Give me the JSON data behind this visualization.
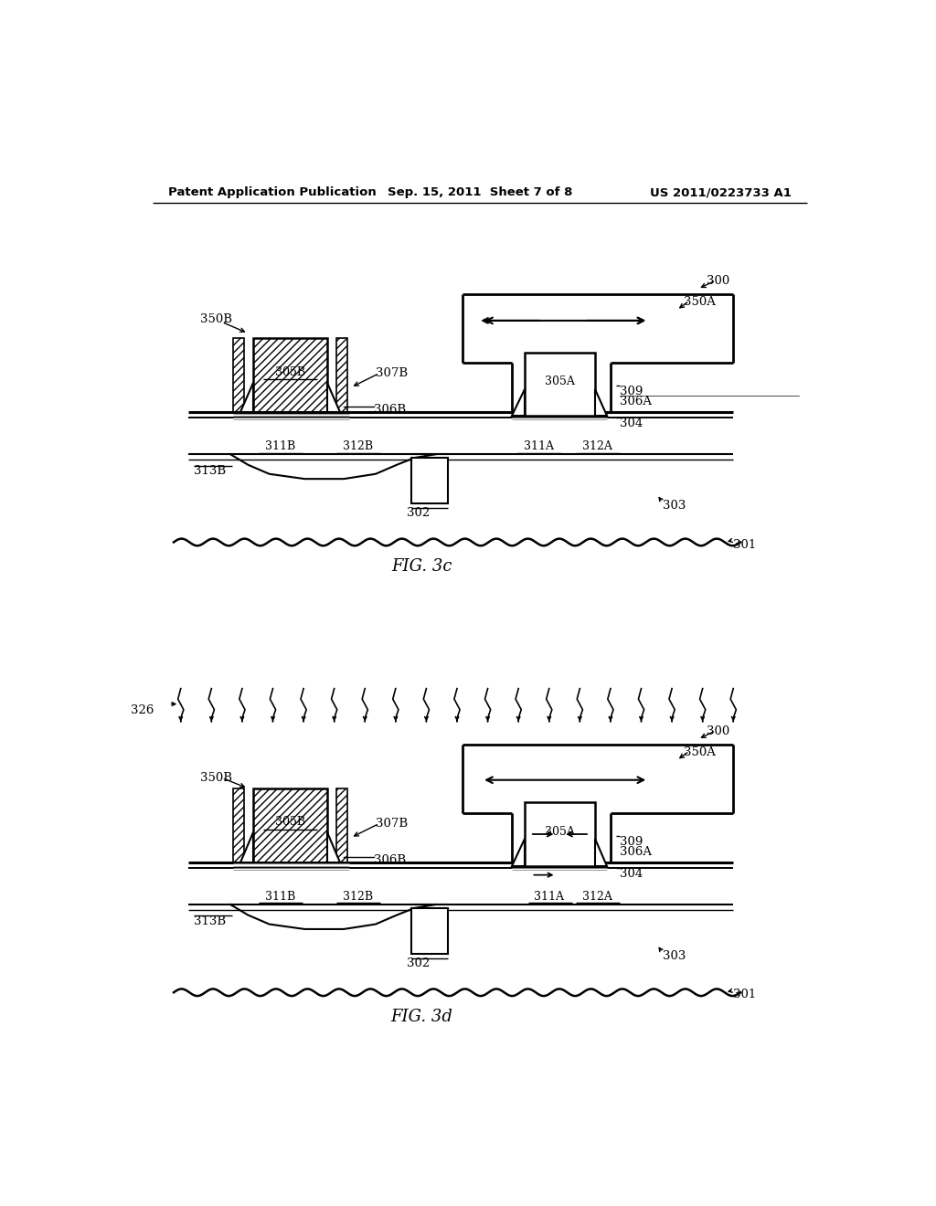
{
  "header_left": "Patent Application Publication",
  "header_mid": "Sep. 15, 2011  Sheet 7 of 8",
  "header_right": "US 2011/0223733 A1",
  "fig3c_label": "FIG. 3c",
  "fig3d_label": "FIG. 3d"
}
